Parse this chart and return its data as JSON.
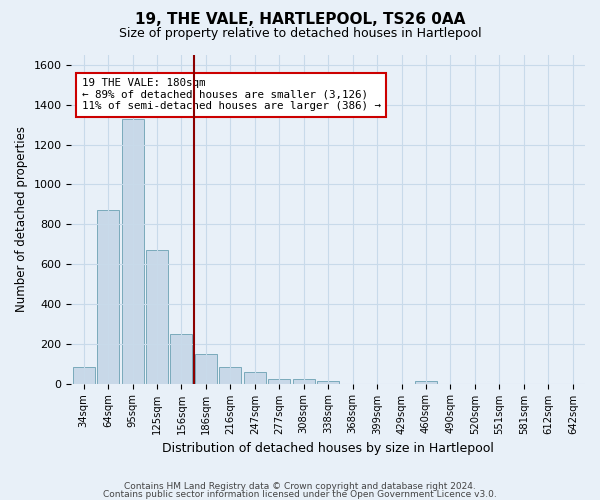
{
  "title": "19, THE VALE, HARTLEPOOL, TS26 0AA",
  "subtitle": "Size of property relative to detached houses in Hartlepool",
  "xlabel": "Distribution of detached houses by size in Hartlepool",
  "ylabel": "Number of detached properties",
  "footer1": "Contains HM Land Registry data © Crown copyright and database right 2024.",
  "footer2": "Contains public sector information licensed under the Open Government Licence v3.0.",
  "categories": [
    "34sqm",
    "64sqm",
    "95sqm",
    "125sqm",
    "156sqm",
    "186sqm",
    "216sqm",
    "247sqm",
    "277sqm",
    "308sqm",
    "338sqm",
    "368sqm",
    "399sqm",
    "429sqm",
    "460sqm",
    "490sqm",
    "520sqm",
    "551sqm",
    "581sqm",
    "612sqm",
    "642sqm"
  ],
  "values": [
    82,
    870,
    1330,
    670,
    248,
    148,
    85,
    58,
    22,
    22,
    15,
    0,
    0,
    0,
    14,
    0,
    0,
    0,
    0,
    0,
    0
  ],
  "bar_color": "#c8d8e8",
  "bar_edge_color": "#7aaabb",
  "grid_color": "#c8daea",
  "bg_color": "#e8f0f8",
  "property_label": "19 THE VALE: 180sqm",
  "arrow_left_text": "← 89% of detached houses are smaller (3,126)",
  "arrow_right_text": "11% of semi-detached houses are larger (386) →",
  "vline_color": "#8b0000",
  "vline_bin_index": 5,
  "annotation_box_color": "white",
  "annotation_box_edge": "#cc0000",
  "ylim": [
    0,
    1650
  ],
  "yticks": [
    0,
    200,
    400,
    600,
    800,
    1000,
    1200,
    1400,
    1600
  ]
}
